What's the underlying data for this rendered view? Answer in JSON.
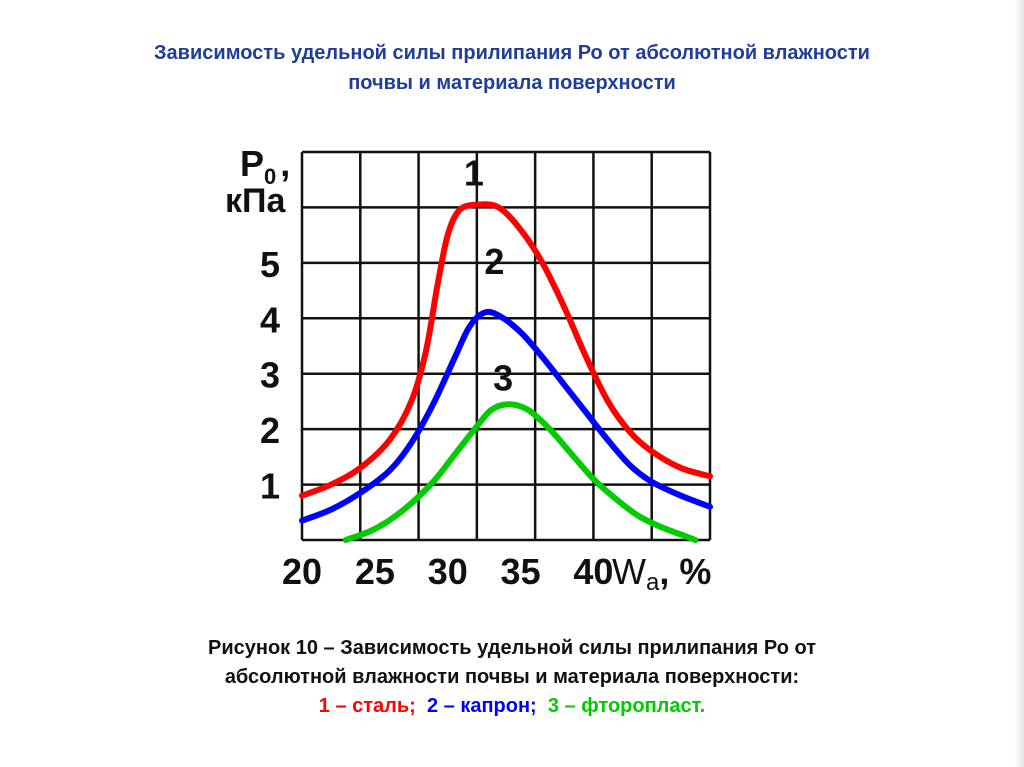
{
  "slide": {
    "title_line1": "Зависимость удельной силы прилипания Ро от абсолютной влажности",
    "title_line2": "почвы и материала поверхности",
    "caption_line1": "Рисунок 10 – Зависимость удельной силы прилипания Ро от",
    "caption_line2": "абсолютной влажности почвы и материала поверхности:",
    "legend": [
      {
        "text": "1 – сталь;",
        "color": "#ff0000"
      },
      {
        "text": "2 – капрон;",
        "color": "#0000ff"
      },
      {
        "text": "3 – фторопласт.",
        "color": "#00cc00"
      }
    ]
  },
  "chart_data": {
    "type": "line",
    "ylabel_main": "P",
    "ylabel_sub": "0",
    "ylabel_suffix": ",",
    "ylabel_unit": "кПа",
    "xlabel_main": "W",
    "xlabel_sub": "a",
    "xlabel_suffix": ", %",
    "xlim": [
      20,
      48
    ],
    "ylim": [
      0,
      7
    ],
    "xticks": [
      20,
      25,
      30,
      35,
      40
    ],
    "yticks": [
      1,
      2,
      3,
      4,
      5
    ],
    "grid": true,
    "series": [
      {
        "name": "1",
        "color": "#ff0000",
        "label_at": [
          31.8,
          6.4
        ],
        "points": [
          [
            20,
            0.8
          ],
          [
            22,
            1.0
          ],
          [
            24,
            1.3
          ],
          [
            26,
            1.8
          ],
          [
            27.5,
            2.5
          ],
          [
            28.5,
            3.4
          ],
          [
            29.3,
            4.6
          ],
          [
            30,
            5.5
          ],
          [
            30.8,
            5.95
          ],
          [
            32,
            6.05
          ],
          [
            33.5,
            6.0
          ],
          [
            35,
            5.6
          ],
          [
            36.5,
            5.0
          ],
          [
            38,
            4.2
          ],
          [
            39.5,
            3.3
          ],
          [
            41,
            2.5
          ],
          [
            42.5,
            1.95
          ],
          [
            44,
            1.6
          ],
          [
            46,
            1.3
          ],
          [
            48,
            1.15
          ]
        ]
      },
      {
        "name": "2",
        "color": "#0000ff",
        "label_at": [
          33.2,
          4.8
        ],
        "points": [
          [
            20,
            0.35
          ],
          [
            22,
            0.55
          ],
          [
            24,
            0.85
          ],
          [
            26,
            1.25
          ],
          [
            27.5,
            1.75
          ],
          [
            29,
            2.45
          ],
          [
            30.5,
            3.3
          ],
          [
            31.5,
            3.85
          ],
          [
            32.5,
            4.1
          ],
          [
            33.5,
            4.05
          ],
          [
            35,
            3.75
          ],
          [
            36.5,
            3.3
          ],
          [
            38,
            2.8
          ],
          [
            39.5,
            2.3
          ],
          [
            41,
            1.8
          ],
          [
            42.5,
            1.35
          ],
          [
            44,
            1.05
          ],
          [
            46,
            0.8
          ],
          [
            48,
            0.6
          ]
        ]
      },
      {
        "name": "3",
        "color": "#00cc00",
        "label_at": [
          33.8,
          2.7
        ],
        "points": [
          [
            23,
            0
          ],
          [
            25,
            0.2
          ],
          [
            27,
            0.55
          ],
          [
            29,
            1.05
          ],
          [
            30.5,
            1.55
          ],
          [
            32,
            2.05
          ],
          [
            33,
            2.35
          ],
          [
            34.2,
            2.45
          ],
          [
            35.5,
            2.35
          ],
          [
            37,
            2.0
          ],
          [
            38.5,
            1.55
          ],
          [
            40,
            1.1
          ],
          [
            41.5,
            0.75
          ],
          [
            43,
            0.45
          ],
          [
            44.5,
            0.25
          ],
          [
            46,
            0.1
          ],
          [
            47,
            0
          ]
        ]
      }
    ]
  }
}
